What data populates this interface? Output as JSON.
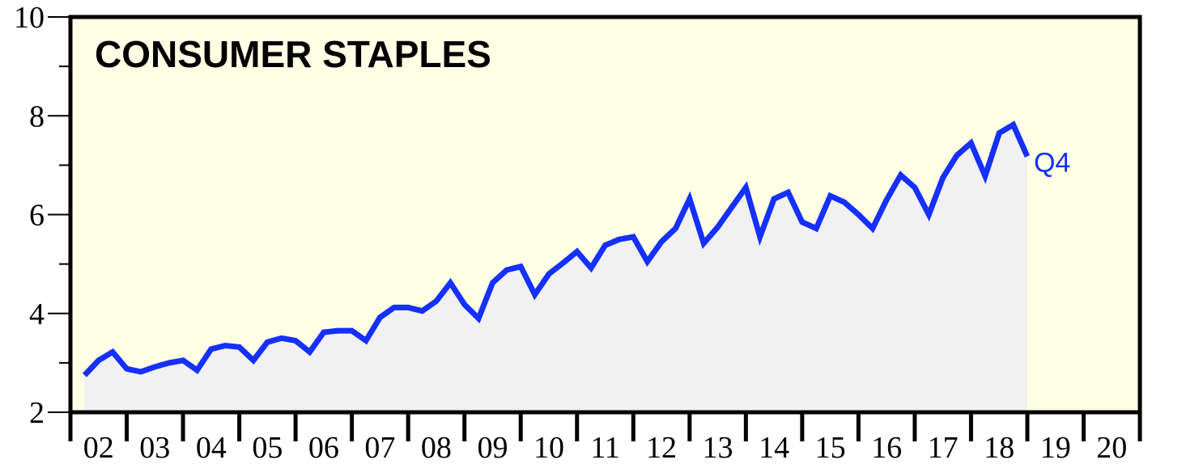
{
  "chart_data": {
    "type": "area",
    "title": "CONSUMER STAPLES",
    "xlabel": "",
    "ylabel": "",
    "ylim": [
      2,
      10
    ],
    "y_ticks": [
      "2",
      "4",
      "6",
      "8",
      "10"
    ],
    "x_ticks": [
      "02",
      "03",
      "04",
      "05",
      "06",
      "07",
      "08",
      "09",
      "10",
      "11",
      "12",
      "13",
      "14",
      "15",
      "16",
      "17",
      "18",
      "19",
      "20"
    ],
    "x_range": [
      2002,
      2021
    ],
    "grid": false,
    "end_label": "Q4",
    "colors": {
      "line": "#1530ff",
      "area": "#f1f1f1",
      "plot_background": "#ffffe6",
      "axis": "#000000"
    },
    "series": [
      {
        "x": [
          2002.25,
          2002.5,
          2002.75,
          2003.0,
          2003.25,
          2003.5,
          2003.75,
          2004.0,
          2004.25,
          2004.5,
          2004.75,
          2005.0,
          2005.25,
          2005.5,
          2005.75,
          2006.0,
          2006.25,
          2006.5,
          2006.75,
          2007.0,
          2007.25,
          2007.5,
          2007.75,
          2008.0,
          2008.25,
          2008.5,
          2008.75,
          2009.0,
          2009.25,
          2009.5,
          2009.75,
          2010.0,
          2010.25,
          2010.5,
          2010.75,
          2011.0,
          2011.25,
          2011.5,
          2011.75,
          2012.0,
          2012.25,
          2012.5,
          2012.75,
          2013.0,
          2013.25,
          2013.5,
          2013.75,
          2014.0,
          2014.25,
          2014.5,
          2014.75,
          2015.0,
          2015.25,
          2015.5,
          2015.75,
          2016.0,
          2016.25,
          2016.5,
          2016.75,
          2017.0,
          2017.25,
          2017.5,
          2017.75,
          2018.0,
          2018.25,
          2018.5,
          2018.75,
          2019.0
        ],
        "values": [
          2.75,
          3.05,
          3.22,
          2.88,
          2.82,
          2.92,
          3.0,
          3.05,
          2.85,
          3.28,
          3.35,
          3.32,
          3.05,
          3.42,
          3.5,
          3.45,
          3.22,
          3.62,
          3.65,
          3.65,
          3.45,
          3.92,
          4.12,
          4.12,
          4.05,
          4.25,
          4.62,
          4.18,
          3.9,
          4.62,
          4.88,
          4.95,
          4.38,
          4.8,
          5.02,
          5.25,
          4.92,
          5.38,
          5.5,
          5.55,
          5.05,
          5.45,
          5.72,
          6.32,
          5.42,
          5.75,
          6.15,
          6.55,
          5.55,
          6.32,
          6.45,
          5.85,
          5.72,
          6.38,
          6.25,
          6.0,
          5.72,
          6.3,
          6.8,
          6.55,
          6.0,
          6.75,
          7.2,
          7.45,
          6.78,
          7.65,
          7.82,
          7.18
        ]
      }
    ]
  }
}
